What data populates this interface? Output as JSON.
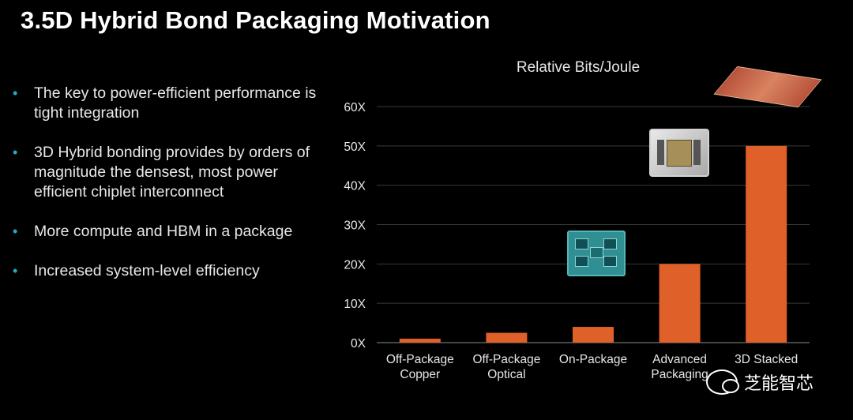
{
  "slide": {
    "title": "3.5D Hybrid Bond Packaging Motivation",
    "bullets": [
      "The key to power-efficient performance is tight integration",
      "3D Hybrid bonding provides by orders of magnitude the densest, most power efficient chiplet interconnect",
      "More compute and HBM in a package",
      "Increased system-level efficiency"
    ]
  },
  "watermark": {
    "text": "芝能智芯"
  },
  "colors": {
    "bar": "#e0602a",
    "bullet": "#27a9c9",
    "grid": "#3a3a3a",
    "axis_text": "#e6e6e6"
  },
  "chart_data": {
    "type": "bar",
    "title": "Relative Bits/Joule",
    "categories": [
      [
        "Off-Package",
        "Copper"
      ],
      [
        "Off-Package",
        "Optical"
      ],
      [
        "On-Package"
      ],
      [
        "Advanced",
        "Packaging"
      ],
      [
        "3D Stacked"
      ]
    ],
    "values": [
      1,
      2.5,
      4,
      20,
      50
    ],
    "ylim": [
      0,
      60
    ],
    "yticks": [
      0,
      10,
      20,
      30,
      40,
      50,
      60
    ],
    "ytick_labels": [
      "0X",
      "10X",
      "20X",
      "30X",
      "40X",
      "50X",
      "60X"
    ],
    "grid": true,
    "xlabel": "",
    "ylabel": ""
  }
}
